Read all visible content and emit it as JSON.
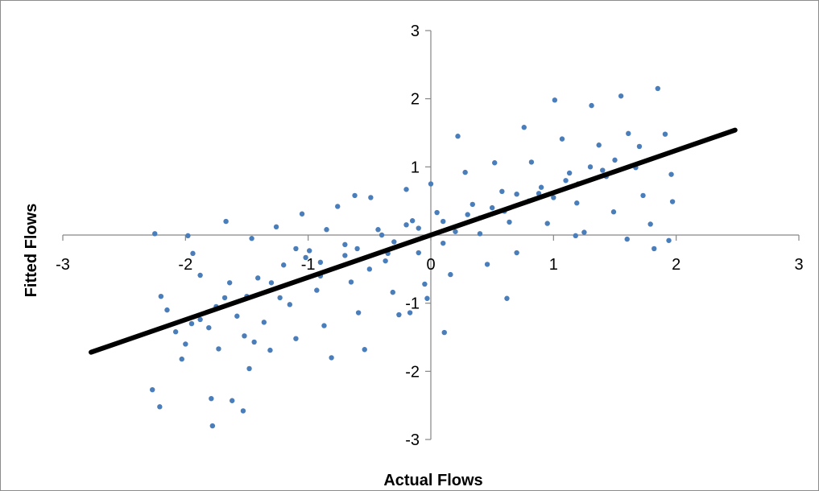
{
  "chart_data": {
    "type": "scatter",
    "title": "",
    "xlabel": "Actual Flows",
    "ylabel": "Fitted Flows",
    "xlim": [
      -3,
      3
    ],
    "ylim": [
      -3,
      3
    ],
    "x_ticks": [
      "-3",
      "-2",
      "-1",
      "0",
      "1",
      "2",
      "3"
    ],
    "y_ticks": [
      "-3",
      "-2",
      "-1",
      "0",
      "1",
      "2",
      "3"
    ],
    "grid": false,
    "legend": "none",
    "marker_color": "#4a7ebb",
    "trendline_color": "#000000",
    "trendline": {
      "x": [
        -2.77,
        2.48
      ],
      "y": [
        -1.72,
        1.54
      ]
    },
    "series": [
      {
        "points": [
          [
            -2.25,
            0.02
          ],
          [
            -1.98,
            -0.01
          ],
          [
            -2.27,
            -2.27
          ],
          [
            -2.21,
            -2.52
          ],
          [
            -1.79,
            -2.4
          ],
          [
            -1.78,
            -2.8
          ],
          [
            -1.62,
            -2.43
          ],
          [
            -1.53,
            -2.58
          ],
          [
            -1.48,
            -1.96
          ],
          [
            -2.2,
            -0.9
          ],
          [
            -2.15,
            -1.1
          ],
          [
            -2.08,
            -1.42
          ],
          [
            -2.03,
            -1.82
          ],
          [
            -1.94,
            -0.27
          ],
          [
            -1.88,
            -0.59
          ],
          [
            -1.81,
            -1.36
          ],
          [
            -1.73,
            -1.67
          ],
          [
            -1.67,
            0.2
          ],
          [
            -1.64,
            -0.7
          ],
          [
            -1.58,
            -1.19
          ],
          [
            -1.52,
            -1.48
          ],
          [
            -1.46,
            -0.05
          ],
          [
            -1.41,
            -0.63
          ],
          [
            -1.36,
            -1.28
          ],
          [
            -1.31,
            -1.69
          ],
          [
            -1.26,
            0.12
          ],
          [
            -1.2,
            -0.44
          ],
          [
            -1.15,
            -1.02
          ],
          [
            -1.1,
            -1.52
          ],
          [
            -1.05,
            0.31
          ],
          [
            -0.99,
            -0.23
          ],
          [
            -0.93,
            -0.81
          ],
          [
            -0.87,
            -1.33
          ],
          [
            -0.81,
            -1.8
          ],
          [
            -0.76,
            0.42
          ],
          [
            -0.7,
            -0.14
          ],
          [
            -0.65,
            -0.69
          ],
          [
            -0.59,
            -1.14
          ],
          [
            -0.54,
            -1.68
          ],
          [
            -0.49,
            0.55
          ],
          [
            -0.43,
            0.08
          ],
          [
            -0.37,
            -0.38
          ],
          [
            -0.31,
            -0.84
          ],
          [
            -0.26,
            -1.17
          ],
          [
            -0.2,
            0.67
          ],
          [
            -0.15,
            0.21
          ],
          [
            -0.1,
            -0.26
          ],
          [
            -0.05,
            -0.72
          ],
          [
            0.0,
            0.75
          ],
          [
            0.05,
            0.33
          ],
          [
            0.1,
            -0.12
          ],
          [
            0.16,
            -0.58
          ],
          [
            0.22,
            1.45
          ],
          [
            0.28,
            0.92
          ],
          [
            0.34,
            0.45
          ],
          [
            0.4,
            0.02
          ],
          [
            0.46,
            -0.43
          ],
          [
            0.52,
            1.06
          ],
          [
            0.58,
            0.64
          ],
          [
            0.64,
            0.19
          ],
          [
            0.7,
            -0.26
          ],
          [
            0.76,
            1.58
          ],
          [
            0.82,
            1.07
          ],
          [
            0.88,
            0.61
          ],
          [
            0.95,
            0.17
          ],
          [
            1.01,
            1.98
          ],
          [
            1.07,
            1.41
          ],
          [
            1.13,
            0.91
          ],
          [
            1.19,
            0.47
          ],
          [
            1.25,
            0.04
          ],
          [
            1.31,
            1.9
          ],
          [
            1.37,
            1.32
          ],
          [
            1.43,
            0.86
          ],
          [
            1.49,
            0.34
          ],
          [
            1.55,
            2.04
          ],
          [
            1.61,
            1.49
          ],
          [
            1.67,
            0.99
          ],
          [
            1.73,
            0.58
          ],
          [
            1.79,
            0.16
          ],
          [
            1.85,
            2.15
          ],
          [
            1.91,
            1.48
          ],
          [
            1.96,
            0.89
          ],
          [
            1.94,
            -0.08
          ],
          [
            1.97,
            0.49
          ],
          [
            1.82,
            -0.2
          ],
          [
            1.6,
            -0.06
          ],
          [
            1.18,
            -0.01
          ],
          [
            0.62,
            -0.93
          ],
          [
            0.11,
            -1.43
          ],
          [
            -0.03,
            -0.93
          ],
          [
            -0.17,
            -1.14
          ],
          [
            -0.35,
            -0.27
          ],
          [
            -0.62,
            0.58
          ],
          [
            -0.85,
            0.08
          ],
          [
            -1.02,
            -0.33
          ],
          [
            -1.23,
            -0.92
          ],
          [
            -1.44,
            -1.57
          ],
          [
            -1.68,
            -0.92
          ],
          [
            -1.88,
            -1.24
          ],
          [
            -2.0,
            -1.6
          ],
          [
            -1.1,
            -0.2
          ],
          [
            -0.9,
            -0.6
          ],
          [
            -0.7,
            -0.3
          ],
          [
            -0.5,
            -0.5
          ],
          [
            -0.3,
            -0.1
          ],
          [
            -0.1,
            0.1
          ],
          [
            0.1,
            0.2
          ],
          [
            0.3,
            0.3
          ],
          [
            0.5,
            0.4
          ],
          [
            0.7,
            0.6
          ],
          [
            0.9,
            0.7
          ],
          [
            1.1,
            0.8
          ],
          [
            1.3,
            1.0
          ],
          [
            1.5,
            1.1
          ],
          [
            1.7,
            1.3
          ],
          [
            -1.5,
            -0.9
          ],
          [
            -1.3,
            -0.7
          ],
          [
            -0.9,
            -0.4
          ],
          [
            -0.6,
            -0.2
          ],
          [
            -0.4,
            0.0
          ],
          [
            -0.2,
            0.15
          ],
          [
            0.2,
            0.05
          ],
          [
            0.4,
            0.25
          ],
          [
            0.6,
            0.35
          ],
          [
            0.8,
            0.5
          ],
          [
            1.0,
            0.55
          ],
          [
            1.2,
            0.75
          ],
          [
            1.4,
            0.95
          ],
          [
            -1.95,
            -1.3
          ],
          [
            -1.75,
            -1.05
          ]
        ]
      }
    ]
  }
}
